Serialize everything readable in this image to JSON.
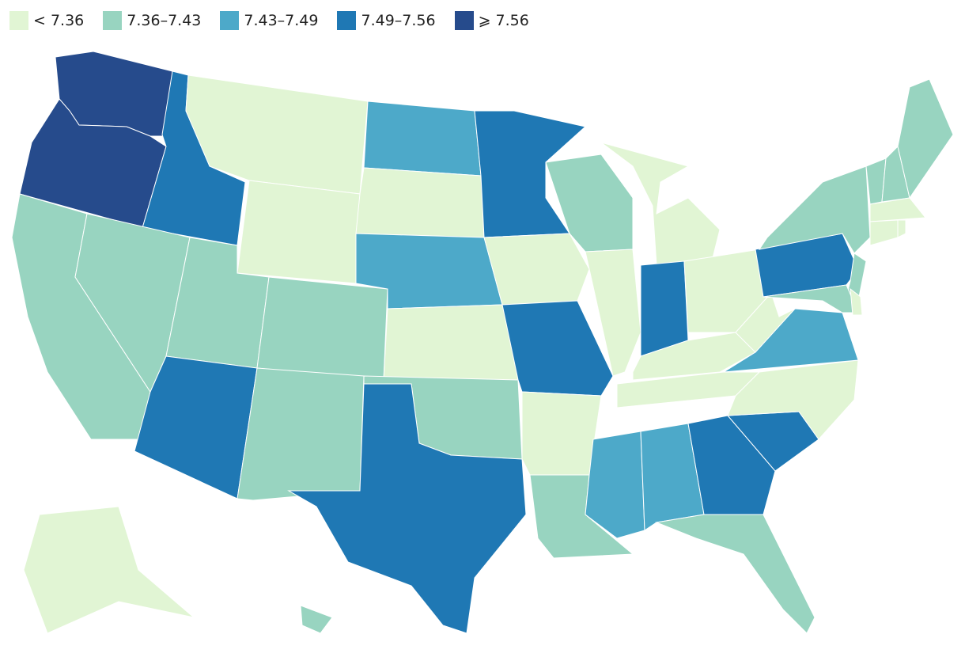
{
  "legend": {
    "items": [
      {
        "label": "< 7.36",
        "color": "#e1f5d4"
      },
      {
        "label": "7.36–7.43",
        "color": "#98d4c0"
      },
      {
        "label": "7.43–7.49",
        "color": "#4da9c9"
      },
      {
        "label": "7.49–7.56",
        "color": "#1f78b4"
      },
      {
        "label": "⩾ 7.56",
        "color": "#264b8c"
      }
    ]
  },
  "map": {
    "regions": [
      {
        "bin": 4
      },
      {
        "bin": 4
      },
      {
        "bin": 1
      },
      {
        "bin": 3
      },
      {
        "bin": 1
      },
      {
        "bin": 0
      },
      {
        "bin": 0
      },
      {
        "bin": 1
      },
      {
        "bin": 3
      },
      {
        "bin": 1
      },
      {
        "bin": 1
      },
      {
        "bin": 2
      },
      {
        "bin": 0
      },
      {
        "bin": 2
      },
      {
        "bin": 0
      },
      {
        "bin": 1
      },
      {
        "bin": 3
      },
      {
        "bin": 3
      },
      {
        "bin": 0
      },
      {
        "bin": 3
      },
      {
        "bin": 0
      },
      {
        "bin": 1
      },
      {
        "bin": 1
      },
      {
        "bin": 0
      },
      {
        "bin": 0
      },
      {
        "bin": 3
      },
      {
        "bin": 0
      },
      {
        "bin": 0
      },
      {
        "bin": 0
      },
      {
        "bin": 2
      },
      {
        "bin": 2
      },
      {
        "bin": 3
      },
      {
        "bin": 1
      },
      {
        "bin": 3
      },
      {
        "bin": 0
      },
      {
        "bin": 2
      },
      {
        "bin": 0
      },
      {
        "bin": 3
      },
      {
        "bin": 1
      },
      {
        "bin": 1
      },
      {
        "bin": 1
      },
      {
        "bin": 0
      },
      {
        "bin": 1
      },
      {
        "bin": 1
      },
      {
        "bin": 1
      },
      {
        "bin": 0
      },
      {
        "bin": 0
      },
      {
        "bin": 0
      },
      {
        "bin": 0
      },
      {
        "bin": 1
      }
    ]
  }
}
